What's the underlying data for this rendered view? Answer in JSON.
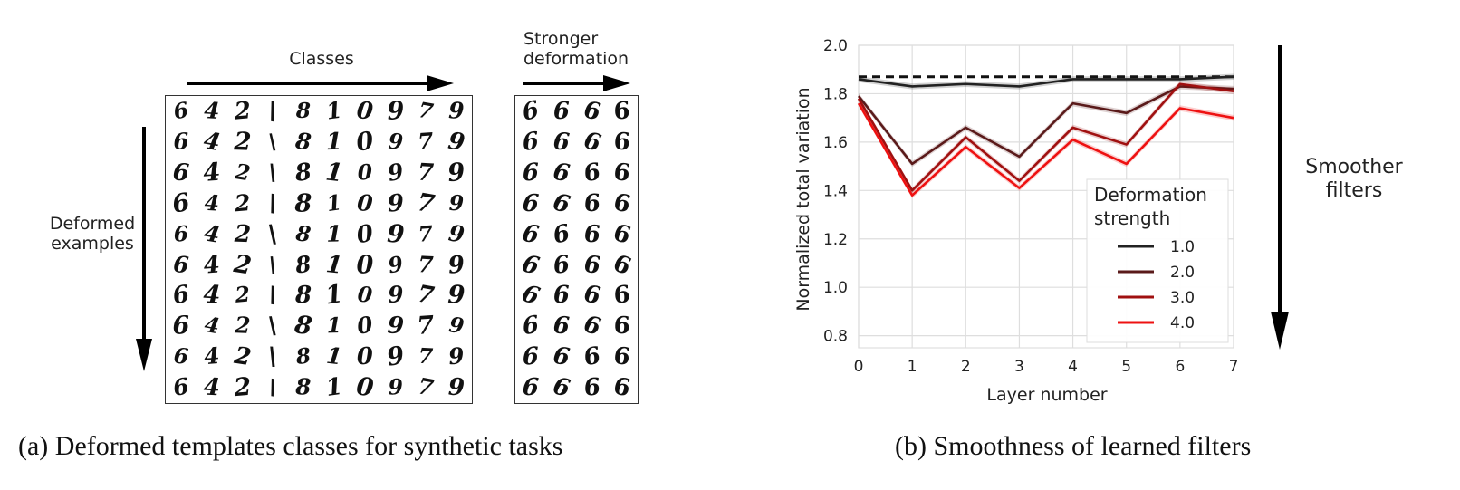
{
  "panel_a": {
    "classes_label": "Classes",
    "deformed_label_1": "Deformed",
    "deformed_label_2": "examples",
    "stronger_label_1": "Stronger",
    "stronger_label_2": "deformation",
    "caption": "(a) Deformed templates classes for synthetic tasks",
    "digit_classes": [
      "6",
      "4",
      "2",
      "\\",
      "8",
      "1",
      "0",
      "9",
      "7",
      "9"
    ],
    "rows": 10,
    "stronger_digit": "6",
    "stronger_cols": 4
  },
  "panel_b": {
    "caption": "(b) Smoothness of learned filters",
    "side_label_1": "Smoother",
    "side_label_2": "filters"
  },
  "chart_data": {
    "type": "line",
    "xlabel": "Layer number",
    "ylabel": "Normalized total variation",
    "x": [
      0,
      1,
      2,
      3,
      4,
      5,
      6,
      7
    ],
    "xlim": [
      0,
      7
    ],
    "ylim": [
      0.75,
      2.0
    ],
    "yticks": [
      "0.8",
      "1.0",
      "1.2",
      "1.4",
      "1.6",
      "1.8",
      "2.0"
    ],
    "xticks": [
      "0",
      "1",
      "2",
      "3",
      "4",
      "5",
      "6",
      "7"
    ],
    "grid": true,
    "legend_title_1": "Deformation",
    "legend_title_2": "strength",
    "legend_placement": "lower-right",
    "reference_line": 1.87,
    "series": [
      {
        "name": "1.0",
        "color": "#222222",
        "values": [
          1.86,
          1.83,
          1.84,
          1.83,
          1.86,
          1.86,
          1.86,
          1.87
        ]
      },
      {
        "name": "2.0",
        "color": "#5a1a1a",
        "values": [
          1.79,
          1.51,
          1.66,
          1.54,
          1.76,
          1.72,
          1.83,
          1.82
        ]
      },
      {
        "name": "3.0",
        "color": "#a01010",
        "values": [
          1.78,
          1.4,
          1.62,
          1.44,
          1.66,
          1.59,
          1.84,
          1.81
        ]
      },
      {
        "name": "4.0",
        "color": "#ee1111",
        "values": [
          1.76,
          1.38,
          1.58,
          1.41,
          1.61,
          1.51,
          1.74,
          1.7
        ]
      }
    ]
  }
}
